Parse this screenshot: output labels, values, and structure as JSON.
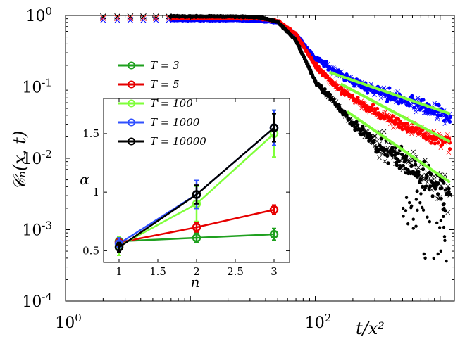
{
  "chart_data": [
    {
      "type": "scatter",
      "role": "main",
      "xlabel": "t/x²",
      "ylabel": "𝒞ₙ(x, t)",
      "xscale": "log",
      "yscale": "log",
      "xlim": [
        1,
        1300
      ],
      "ylim": [
        0.0001,
        1
      ],
      "grid": false,
      "x_tick_labels": [
        {
          "value": 1,
          "base": "10",
          "exp": "0"
        },
        {
          "value": 100,
          "base": "10",
          "exp": "2"
        }
      ],
      "y_tick_labels": [
        {
          "value": 1,
          "base": "10",
          "exp": "0"
        },
        {
          "value": 0.1,
          "base": "10",
          "exp": "-1"
        },
        {
          "value": 0.01,
          "base": "10",
          "exp": "-2"
        },
        {
          "value": 0.001,
          "base": "10",
          "exp": "-3"
        },
        {
          "value": 0.0001,
          "base": "10",
          "exp": "-4"
        }
      ],
      "series": [
        {
          "color": "#0000ff",
          "marker": "x",
          "plateau": 0.86,
          "x": [
            2,
            5,
            10,
            20,
            35,
            50,
            70,
            100,
            150,
            200,
            300,
            400,
            600,
            800,
            1000,
            1200
          ],
          "y": [
            0.86,
            0.86,
            0.86,
            0.86,
            0.85,
            0.8,
            0.55,
            0.25,
            0.16,
            0.12,
            0.09,
            0.075,
            0.058,
            0.048,
            0.042,
            0.038
          ]
        },
        {
          "color": "#ff0000",
          "marker": "x",
          "plateau": 0.92,
          "x": [
            2,
            5,
            10,
            20,
            35,
            50,
            70,
            100,
            150,
            200,
            300,
            400,
            600,
            800,
            1000,
            1200
          ],
          "y": [
            0.92,
            0.92,
            0.92,
            0.92,
            0.91,
            0.84,
            0.55,
            0.2,
            0.1,
            0.07,
            0.045,
            0.035,
            0.026,
            0.021,
            0.018,
            0.016
          ]
        },
        {
          "color": "#000000",
          "marker": "x",
          "plateau": 0.97,
          "x": [
            2,
            5,
            10,
            20,
            35,
            50,
            70,
            100,
            150,
            200,
            300,
            400,
            600,
            800,
            1000,
            1200
          ],
          "y": [
            0.97,
            0.97,
            0.97,
            0.97,
            0.95,
            0.82,
            0.45,
            0.12,
            0.055,
            0.03,
            0.017,
            0.012,
            0.0075,
            0.0055,
            0.004,
            0.003
          ]
        }
      ],
      "fit_lines": [
        {
          "color": "#7fff3a",
          "x": [
            130,
            1200
          ],
          "y": [
            0.16,
            0.042
          ]
        },
        {
          "color": "#7fff3a",
          "x": [
            160,
            1200
          ],
          "y": [
            0.11,
            0.017
          ]
        },
        {
          "color": "#7fff3a",
          "x": [
            180,
            1200
          ],
          "y": [
            0.045,
            0.0046
          ]
        }
      ]
    },
    {
      "type": "line",
      "role": "inset",
      "xlabel": "n",
      "ylabel": "α",
      "xlim": [
        0.8,
        3.2
      ],
      "ylim": [
        0.4,
        1.8
      ],
      "x_ticks": [
        1,
        1.5,
        2,
        2.5,
        3
      ],
      "x_tick_labels": [
        "1",
        "1.5",
        "2",
        "2.5",
        "3"
      ],
      "y_ticks": [
        0.5,
        1,
        1.5
      ],
      "y_tick_labels": [
        "0.5",
        "1",
        "1.5"
      ],
      "legend_position": "top-left (outside inset)",
      "series": [
        {
          "name": "T = 3",
          "color": "#1fa01f",
          "x": [
            1,
            2,
            3
          ],
          "y": [
            0.58,
            0.61,
            0.64
          ],
          "err": [
            0.04,
            0.04,
            0.05
          ]
        },
        {
          "name": "T = 5",
          "color": "#e60000",
          "x": [
            1,
            2,
            3
          ],
          "y": [
            0.57,
            0.7,
            0.85
          ],
          "err": [
            0.04,
            0.04,
            0.04
          ]
        },
        {
          "name": "T = 100",
          "color": "#7fff3a",
          "x": [
            1,
            2,
            3
          ],
          "y": [
            0.54,
            0.9,
            1.5
          ],
          "err": [
            0.08,
            0.15,
            0.2
          ]
        },
        {
          "name": "T = 1000",
          "color": "#3050ff",
          "x": [
            1,
            2,
            3
          ],
          "y": [
            0.56,
            0.98,
            1.55
          ],
          "err": [
            0.05,
            0.12,
            0.15
          ]
        },
        {
          "name": "T = 10000",
          "color": "#000000",
          "x": [
            1,
            2,
            3
          ],
          "y": [
            0.53,
            0.98,
            1.55
          ],
          "err": [
            0.04,
            0.08,
            0.12
          ]
        }
      ]
    }
  ]
}
